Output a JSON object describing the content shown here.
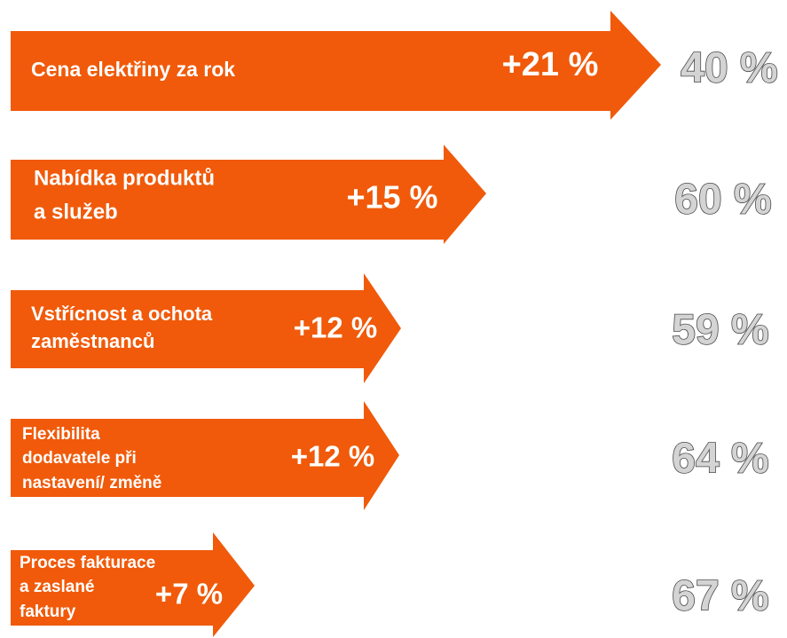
{
  "items": [
    {
      "label_lines": [
        "Cena elektřiny za rok"
      ],
      "change": "+21 %",
      "value": "40 %"
    },
    {
      "label_lines": [
        "Nabídka produktů",
        "a služeb"
      ],
      "change": "+15 %",
      "value": "60 %"
    },
    {
      "label_lines": [
        "Vstřícnost a ochota",
        "zaměstnanců"
      ],
      "change": "+12 %",
      "value": "59 %"
    },
    {
      "label_lines": [
        "Flexibilita",
        "dodavatele při",
        "nastavení/ změně"
      ],
      "change": "+12 %",
      "value": "64 %"
    },
    {
      "label_lines": [
        "Proces fakturace",
        "a zaslané",
        "faktury"
      ],
      "change": "+7 %",
      "value": "67 %"
    }
  ]
}
